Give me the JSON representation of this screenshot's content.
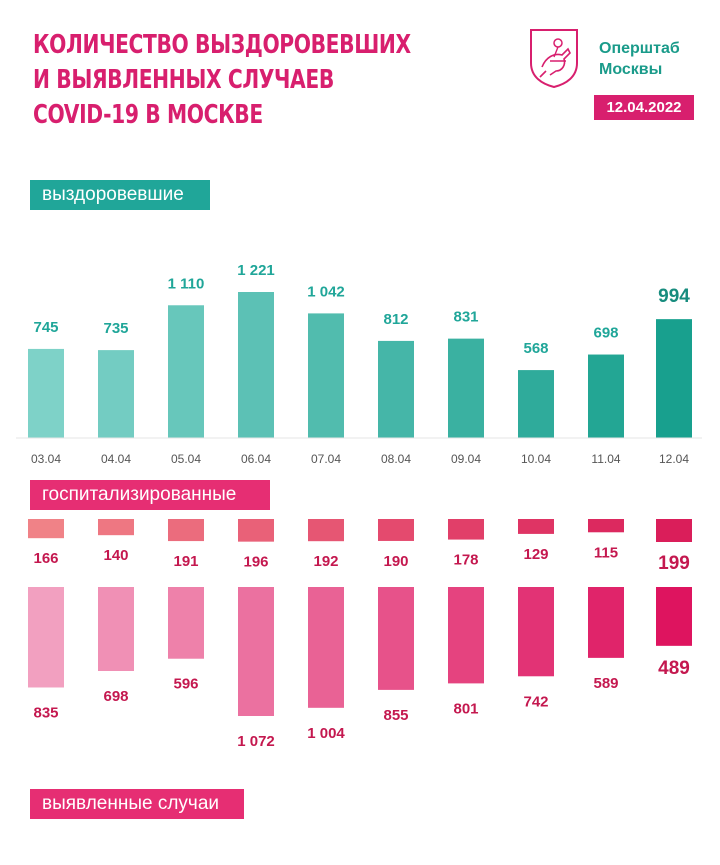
{
  "header": {
    "title_lines": [
      "КОЛИЧЕСТВО ВЫЗДОРОВЕВШИХ",
      "И ВЫЯВЛЕННЫХ СЛУЧАЕВ",
      "COVID-19 В МОСКВЕ"
    ],
    "brand_line1": "Оперштаб",
    "brand_line2": "Москвы",
    "date": "12.04.2022",
    "logo_icon": "moscow-coat-of-arms-icon"
  },
  "colors": {
    "accent_pink": "#d81f6e",
    "accent_teal": "#20a699"
  },
  "chart_data": [
    {
      "type": "bar",
      "title": "выздоровевшие",
      "categories": [
        "03.04",
        "04.04",
        "05.04",
        "06.04",
        "07.04",
        "08.04",
        "09.04",
        "10.04",
        "11.04",
        "12.04"
      ],
      "values": [
        745,
        735,
        1110,
        1221,
        1042,
        812,
        831,
        568,
        698,
        994
      ],
      "value_labels": [
        "745",
        "735",
        "1 110",
        "1 221",
        "1 042",
        "812",
        "831",
        "568",
        "698",
        "994"
      ],
      "highlight_last": true
    },
    {
      "type": "bar",
      "title": "госпитализированные",
      "categories": [
        "03.04",
        "04.04",
        "05.04",
        "06.04",
        "07.04",
        "08.04",
        "09.04",
        "10.04",
        "11.04",
        "12.04"
      ],
      "values": [
        166,
        140,
        191,
        196,
        192,
        190,
        178,
        129,
        115,
        199
      ],
      "value_labels": [
        "166",
        "140",
        "191",
        "196",
        "192",
        "190",
        "178",
        "129",
        "115",
        "199"
      ],
      "orientation": "downward",
      "highlight_last": true
    },
    {
      "type": "bar",
      "title": "выявленные случаи",
      "categories": [
        "03.04",
        "04.04",
        "05.04",
        "06.04",
        "07.04",
        "08.04",
        "09.04",
        "10.04",
        "11.04",
        "12.04"
      ],
      "values": [
        835,
        698,
        596,
        1072,
        1004,
        855,
        801,
        742,
        589,
        489
      ],
      "value_labels": [
        "835",
        "698",
        "596",
        "1 072",
        "1 004",
        "855",
        "801",
        "742",
        "589",
        "489"
      ],
      "orientation": "downward",
      "highlight_last": true
    }
  ]
}
